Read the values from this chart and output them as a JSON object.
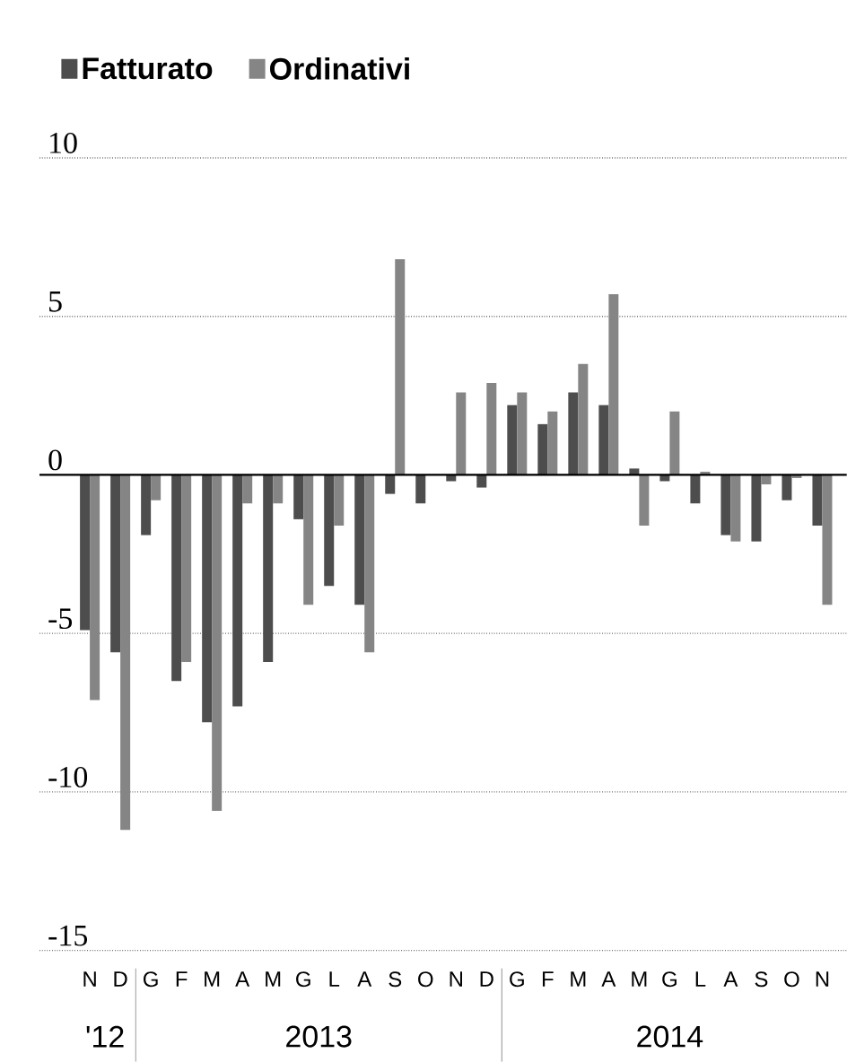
{
  "chart_data": {
    "type": "bar",
    "categories": [
      "N",
      "D",
      "G",
      "F",
      "M",
      "A",
      "M",
      "G",
      "L",
      "A",
      "S",
      "O",
      "N",
      "D",
      "G",
      "F",
      "M",
      "A",
      "M",
      "G",
      "L",
      "A",
      "S",
      "O",
      "N"
    ],
    "series": [
      {
        "name": "Fatturato",
        "color": "#4d4d4d",
        "values": [
          -4.9,
          -5.6,
          -1.9,
          -6.5,
          -7.8,
          -7.3,
          -5.9,
          -1.4,
          -3.5,
          -4.1,
          -0.6,
          -0.9,
          -0.2,
          -0.4,
          2.2,
          1.6,
          2.6,
          2.2,
          0.2,
          -0.2,
          -0.9,
          -1.9,
          -2.1,
          -0.8,
          -1.6
        ]
      },
      {
        "name": "Ordinativi",
        "color": "#858585",
        "values": [
          -7.1,
          -11.2,
          -0.8,
          -5.9,
          -10.6,
          -0.9,
          -0.9,
          -4.1,
          -1.6,
          -5.6,
          6.8,
          0,
          2.6,
          2.9,
          2.6,
          2.0,
          3.5,
          5.7,
          -1.6,
          2.0,
          0.1,
          -2.1,
          -0.3,
          -0.1,
          -4.1
        ]
      }
    ],
    "ylim": [
      -15,
      10
    ],
    "yticks": [
      -15,
      -10,
      -5,
      0,
      5,
      10
    ],
    "grid": "y",
    "legend": "top left",
    "annotations": [
      "'12",
      "2013",
      "2014"
    ]
  }
}
